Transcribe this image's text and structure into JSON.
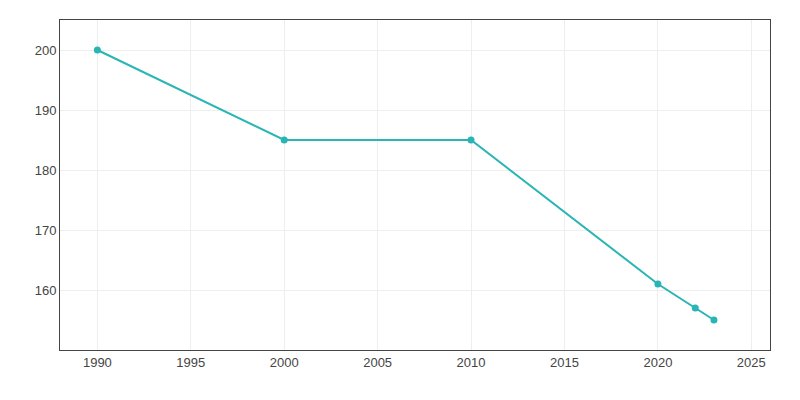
{
  "chart_data": {
    "type": "line",
    "x": [
      1990,
      2000,
      2010,
      2020,
      2022,
      2023
    ],
    "values": [
      200,
      185,
      185,
      161,
      157,
      155
    ],
    "color": "#2ab5b5",
    "marker": "circle",
    "xlim": [
      1988,
      2026
    ],
    "ylim": [
      150,
      205
    ],
    "xticks": [
      1990,
      1995,
      2000,
      2005,
      2010,
      2015,
      2020,
      2025
    ],
    "yticks": [
      160,
      170,
      180,
      190,
      200
    ],
    "grid": true
  }
}
